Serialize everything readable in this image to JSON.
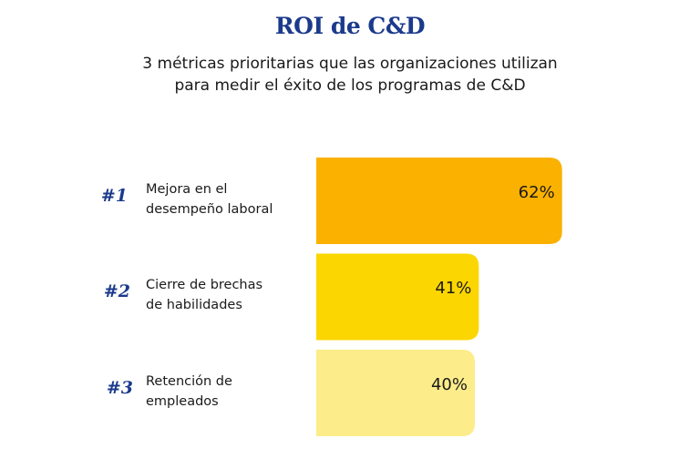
{
  "chart_data": {
    "type": "bar",
    "orientation": "horizontal",
    "title": "ROI de C&D",
    "subtitle": [
      "3 métricas prioritarias que las organizaciones utilizan",
      "para medir el éxito de los programas de C&D"
    ],
    "ranks": [
      "#1",
      "#2",
      "#3"
    ],
    "categories": [
      "Mejora en el desempeño laboral",
      "Cierre de brechas de habilidades",
      "Retención de empleados"
    ],
    "values": [
      62,
      41,
      40
    ],
    "value_labels": [
      "62%",
      "41%",
      "40%"
    ],
    "colors": [
      "#fbb100",
      "#fcd600",
      "#fdec8a"
    ]
  }
}
